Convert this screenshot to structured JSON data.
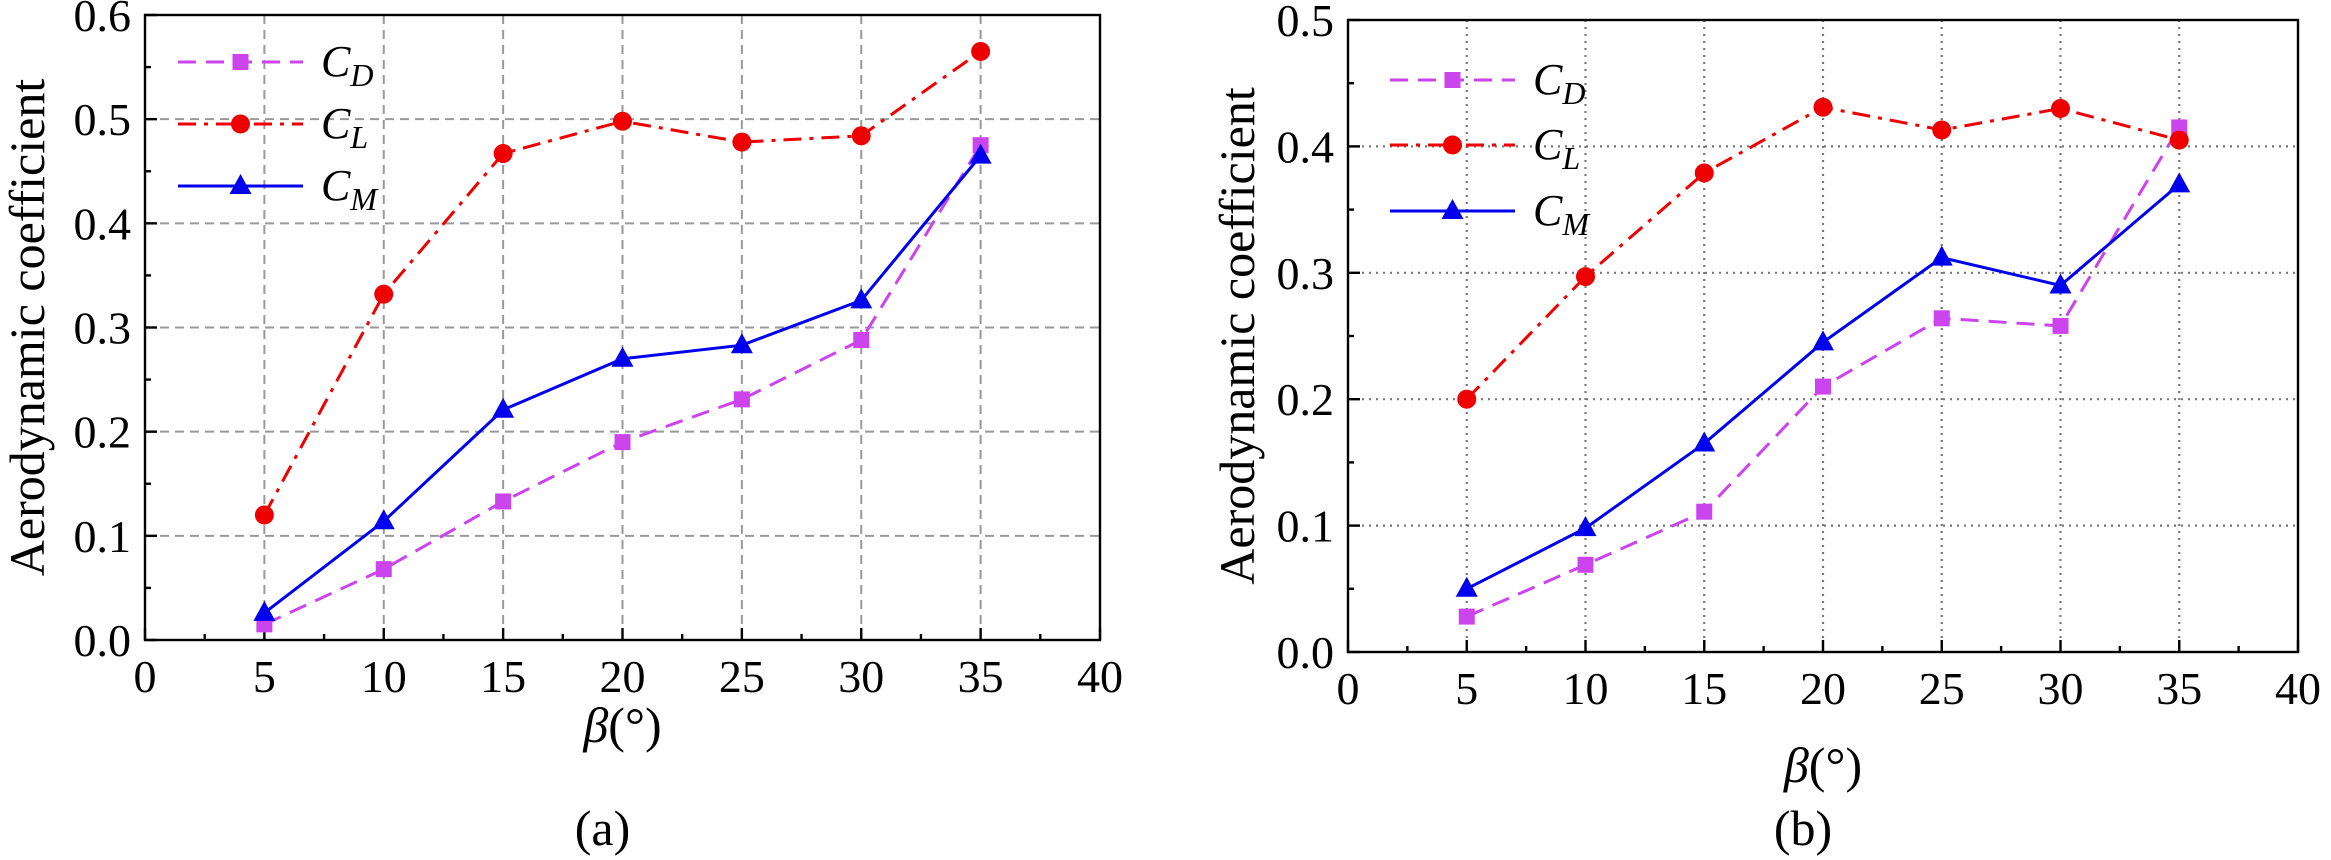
{
  "chart_data": [
    {
      "panel_label": "(a)",
      "type": "line",
      "x": [
        5,
        10,
        15,
        20,
        25,
        30,
        35
      ],
      "xlabel_symbol": "β",
      "xlabel_unit": "(°)",
      "ylabel": "Aerodynamic coefficient",
      "xlim": [
        0,
        40
      ],
      "ylim": [
        0,
        0.6
      ],
      "xticks": [
        "0",
        "5",
        "10",
        "15",
        "20",
        "25",
        "30",
        "35",
        "40"
      ],
      "yticks": [
        "0.0",
        "0.1",
        "0.2",
        "0.3",
        "0.4",
        "0.5",
        "0.6"
      ],
      "grid": "dashed",
      "legend_position": "top-left",
      "series": [
        {
          "name": "C",
          "subscript": "D",
          "color": "#cc44ee",
          "line": "dash",
          "marker": "square",
          "values": [
            0.015,
            0.068,
            0.133,
            0.19,
            0.231,
            0.288,
            0.475
          ]
        },
        {
          "name": "C",
          "subscript": "L",
          "color": "#ee0000",
          "line": "dashdot",
          "marker": "circle",
          "values": [
            0.12,
            0.332,
            0.467,
            0.498,
            0.478,
            0.484,
            0.565
          ]
        },
        {
          "name": "C",
          "subscript": "M",
          "color": "#0000ee",
          "line": "solid",
          "marker": "triangle",
          "values": [
            0.026,
            0.114,
            0.221,
            0.27,
            0.283,
            0.326,
            0.465
          ]
        }
      ]
    },
    {
      "panel_label": "(b)",
      "type": "line",
      "x": [
        5,
        10,
        15,
        20,
        25,
        30,
        35
      ],
      "xlabel_symbol": "β",
      "xlabel_unit": "(°)",
      "ylabel": "Aerodynamic coefficient",
      "xlim": [
        0,
        40
      ],
      "ylim": [
        0,
        0.5
      ],
      "xticks": [
        "0",
        "5",
        "10",
        "15",
        "20",
        "25",
        "30",
        "35",
        "40"
      ],
      "yticks": [
        "0.0",
        "0.1",
        "0.2",
        "0.3",
        "0.4",
        "0.5"
      ],
      "grid": "dotted",
      "legend_position": "top-left",
      "series": [
        {
          "name": "C",
          "subscript": "D",
          "color": "#cc44ee",
          "line": "dash",
          "marker": "square",
          "values": [
            0.028,
            0.069,
            0.111,
            0.21,
            0.264,
            0.258,
            0.415
          ]
        },
        {
          "name": "C",
          "subscript": "L",
          "color": "#ee0000",
          "line": "dashdot",
          "marker": "circle",
          "values": [
            0.2,
            0.297,
            0.379,
            0.431,
            0.413,
            0.43,
            0.405
          ]
        },
        {
          "name": "C",
          "subscript": "M",
          "color": "#0000ee",
          "line": "solid",
          "marker": "triangle",
          "values": [
            0.05,
            0.098,
            0.165,
            0.245,
            0.312,
            0.29,
            0.37
          ]
        }
      ]
    }
  ]
}
